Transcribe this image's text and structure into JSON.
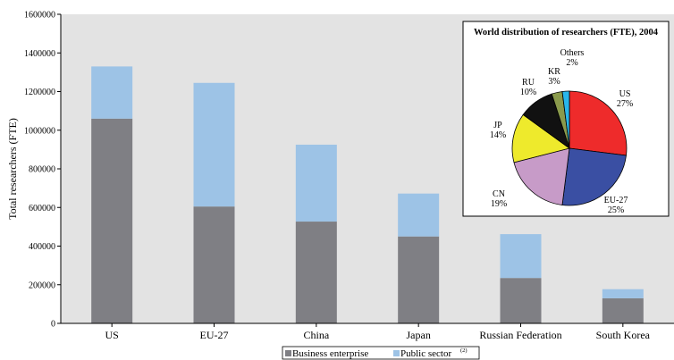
{
  "chart_data": {
    "type": "bar",
    "stacked": true,
    "ylabel": "Total researchers (FTE)",
    "xlabel": "",
    "ylim": [
      0,
      1600000
    ],
    "yticks": [
      0,
      200000,
      400000,
      600000,
      800000,
      1000000,
      1200000,
      1400000,
      1600000
    ],
    "categories": [
      "US",
      "EU-27",
      "China",
      "Japan",
      "Russian Federation",
      "South Korea"
    ],
    "series": [
      {
        "name": "Business enterprise",
        "color": "#7f7f84",
        "values": [
          1060000,
          605000,
          527000,
          450000,
          235000,
          130000
        ]
      },
      {
        "name": "Public sector",
        "color": "#9dc3e6",
        "values": [
          270000,
          640000,
          398000,
          222000,
          227000,
          47000
        ]
      }
    ],
    "legend": {
      "position": "bottom",
      "items": [
        {
          "label": "Business enterprise",
          "color": "#7f7f84"
        },
        {
          "label": "Public sector",
          "superscript": "(2)",
          "color": "#9dc3e6"
        }
      ]
    },
    "background": "#e3e3e3",
    "grid": false,
    "inset": {
      "type": "pie",
      "title": "World distribution of researchers (FTE), 2004",
      "slices": [
        {
          "code": "US",
          "pct_label": "27%",
          "value": 27,
          "color": "#ee2b2b"
        },
        {
          "code": "EU-27",
          "pct_label": "25%",
          "value": 25,
          "color": "#3a4fa3"
        },
        {
          "code": "CN",
          "pct_label": "19%",
          "value": 19,
          "color": "#c79bc8"
        },
        {
          "code": "JP",
          "pct_label": "14%",
          "value": 14,
          "color": "#eeea2c"
        },
        {
          "code": "RU",
          "pct_label": "10%",
          "value": 10,
          "color": "#111111"
        },
        {
          "code": "KR",
          "pct_label": "3%",
          "value": 3,
          "color": "#8a9a4c"
        },
        {
          "code": "Others",
          "pct_label": "2%",
          "value": 2,
          "color": "#29b6ea"
        }
      ]
    }
  }
}
